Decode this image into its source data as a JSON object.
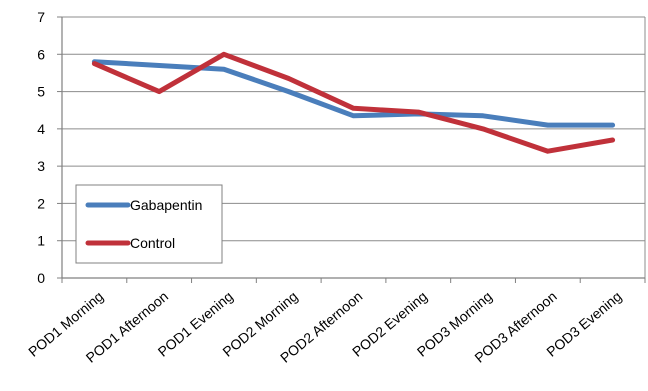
{
  "chart_data": {
    "type": "line",
    "title": "",
    "xlabel": "",
    "ylabel": "",
    "categories": [
      "POD1 Morning",
      "POD1 Afternoon",
      "POD1 Evening",
      "POD2 Morning",
      "POD2 Afternoon",
      "POD2 Evening",
      "POD3 Morning",
      "POD3 Afternoon",
      "POD3 Evening"
    ],
    "ylim": [
      0,
      7
    ],
    "yticks": [
      "0",
      "1",
      "2",
      "3",
      "4",
      "5",
      "6",
      "7"
    ],
    "grid": true,
    "legend_position": "left",
    "series": [
      {
        "name": "Gabapentin",
        "color": "#4a7ebb",
        "values": [
          5.8,
          5.7,
          5.6,
          5.0,
          4.35,
          4.4,
          4.35,
          4.1,
          4.1
        ]
      },
      {
        "name": "Control",
        "color": "#c0313a",
        "values": [
          5.75,
          5.0,
          6.0,
          5.35,
          4.55,
          4.45,
          4.0,
          3.4,
          3.7
        ]
      }
    ]
  }
}
